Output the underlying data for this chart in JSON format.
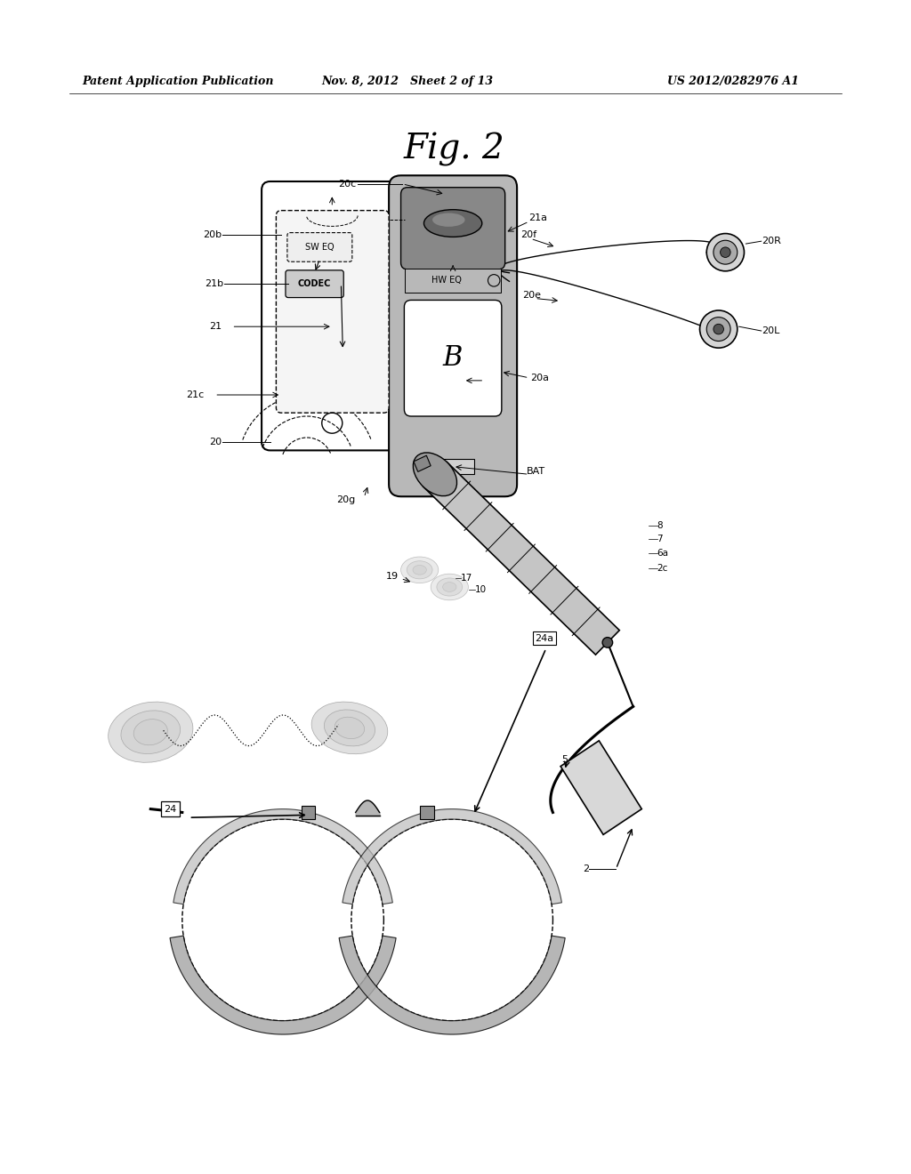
{
  "header_left": "Patent Application Publication",
  "header_mid": "Nov. 8, 2012   Sheet 2 of 13",
  "header_right": "US 2012/0282976 A1",
  "bg_color": "#ffffff",
  "fig_label": "Fig. 2"
}
